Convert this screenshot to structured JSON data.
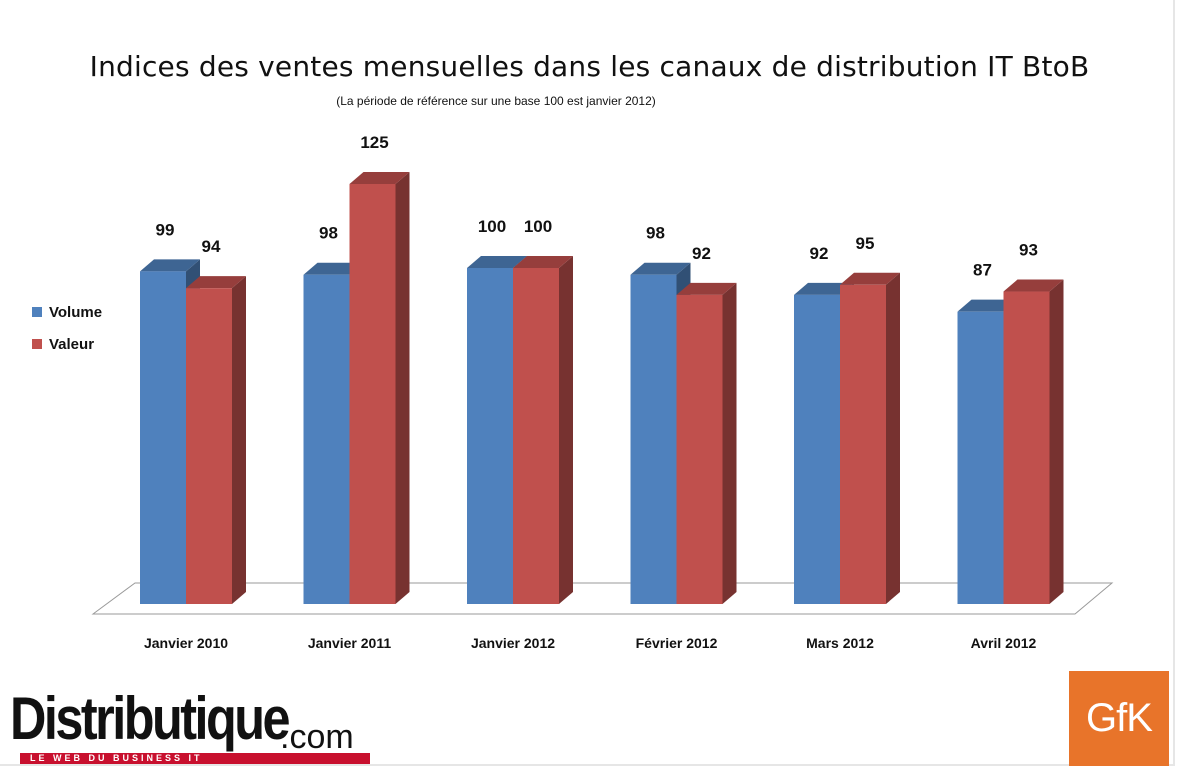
{
  "chart_data": {
    "type": "bar",
    "title": "Indices des ventes mensuelles dans les canaux de distribution IT BtoB",
    "subtitle": "(La période de référence sur une base 100 est janvier 2012)",
    "categories": [
      "Janvier 2010",
      "Janvier 2011",
      "Janvier 2012",
      "Février 2012",
      "Mars 2012",
      "Avril 2012"
    ],
    "series": [
      {
        "name": "Volume",
        "values": [
          99,
          98,
          100,
          98,
          92,
          87
        ],
        "color": "#4f81bd"
      },
      {
        "name": "Valeur",
        "values": [
          94,
          125,
          100,
          92,
          95,
          93
        ],
        "color": "#c0504d"
      }
    ],
    "ylim": [
      0,
      125
    ],
    "legend": "left",
    "grid": false,
    "style": "3d-clustered-column"
  },
  "branding": {
    "publisher_logo": "Distributique",
    "publisher_suffix": ".com",
    "publisher_tagline": "LE WEB DU BUSINESS IT",
    "source_logo": "GfK",
    "source_color": "#e8742a",
    "accent_color": "#c8102e"
  }
}
